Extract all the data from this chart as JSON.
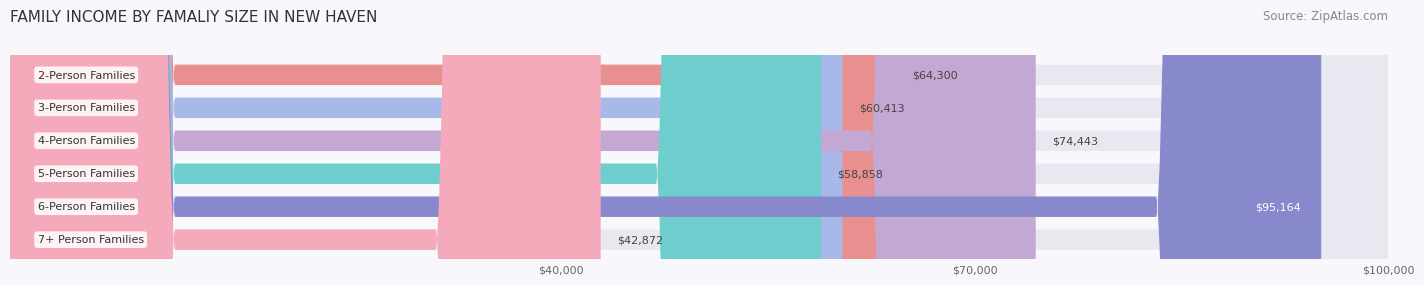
{
  "title": "FAMILY INCOME BY FAMALIY SIZE IN NEW HAVEN",
  "source": "Source: ZipAtlas.com",
  "categories": [
    "2-Person Families",
    "3-Person Families",
    "4-Person Families",
    "5-Person Families",
    "6-Person Families",
    "7+ Person Families"
  ],
  "values": [
    64300,
    60413,
    74443,
    58858,
    95164,
    42872
  ],
  "labels": [
    "$64,300",
    "$60,413",
    "$74,443",
    "$58,858",
    "$95,164",
    "$42,872"
  ],
  "bar_colors": [
    "#E89090",
    "#A8B8E8",
    "#C4A8D4",
    "#6ECECE",
    "#8888CC",
    "#F4AABB"
  ],
  "bar_bg_color": "#E8E8F0",
  "xlim": [
    0,
    100000
  ],
  "xticks": [
    40000,
    70000,
    100000
  ],
  "xticklabels": [
    "$40,000",
    "$70,000",
    "$100,000"
  ],
  "background_color": "#F8F8FC",
  "title_fontsize": 11,
  "source_fontsize": 8.5,
  "label_fontsize": 8,
  "bar_label_fontsize": 8,
  "category_fontsize": 8
}
